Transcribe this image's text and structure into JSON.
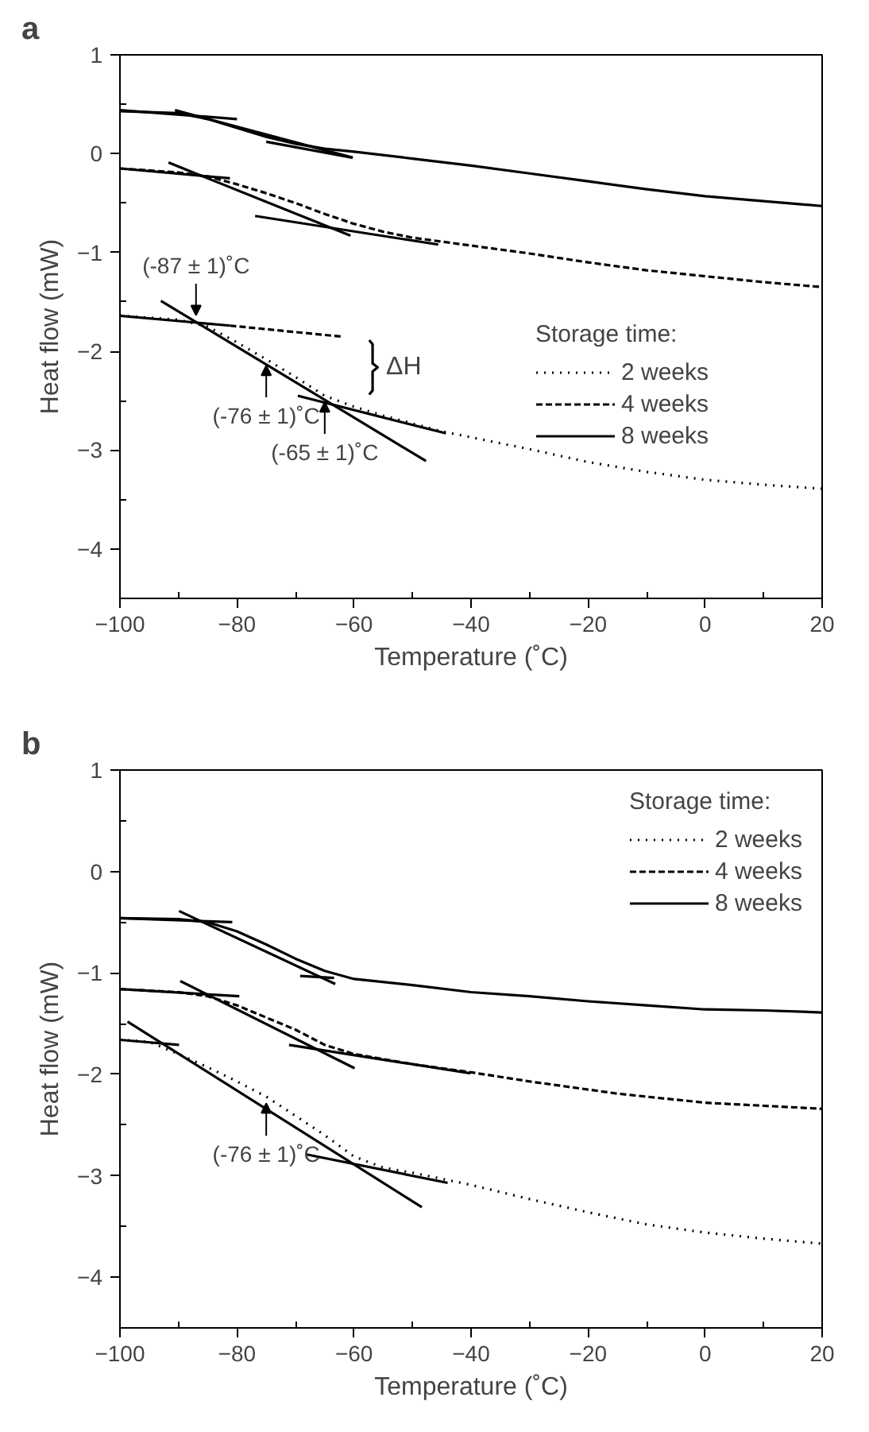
{
  "chart_data": [
    {
      "type": "line",
      "title": "a",
      "xlabel": "Temperature (˚C)",
      "ylabel": "Heat flow (mW)",
      "legend_title": "Storage time:",
      "legend": "right",
      "grid": false,
      "line_style": "solid",
      "xlim": [
        -100,
        20
      ],
      "ylim": [
        -4.5,
        1
      ],
      "xticks": [
        -100,
        {
          "value": -90,
          "label": null
        },
        -80,
        {
          "value": -70,
          "label": null
        },
        -60,
        {
          "value": -50,
          "label": null
        },
        -40,
        {
          "value": -30,
          "label": null
        },
        -20,
        {
          "value": -10,
          "label": null
        },
        0,
        {
          "value": 10,
          "label": null
        },
        20
      ],
      "yticks": [
        -4,
        {
          "value": -3.5,
          "label": null
        },
        -3,
        {
          "value": -2.5,
          "label": null
        },
        -2,
        {
          "value": -1.5,
          "label": null
        },
        -1,
        {
          "value": -0.5,
          "label": null
        },
        0,
        {
          "value": 0.5,
          "label": null
        },
        1
      ],
      "series": [
        {
          "name": "2 weeks",
          "color": "#000000",
          "line_style": "dotted",
          "x": [
            -100,
            -90,
            -85,
            -80,
            -75,
            -70,
            -65,
            -60,
            -55,
            -50,
            -45,
            -40,
            -30,
            -20,
            -10,
            0,
            10,
            20
          ],
          "values": [
            -1.64,
            -1.68,
            -1.75,
            -1.91,
            -2.08,
            -2.26,
            -2.45,
            -2.56,
            -2.65,
            -2.73,
            -2.81,
            -2.87,
            -2.99,
            -3.12,
            -3.22,
            -3.3,
            -3.35,
            -3.39
          ]
        },
        {
          "name": "4 weeks",
          "color": "#000000",
          "line_style": "dashed",
          "x": [
            -100,
            -90,
            -85,
            -80,
            -75,
            -70,
            -65,
            -60,
            -55,
            -50,
            -45,
            -40,
            -30,
            -20,
            -10,
            0,
            10,
            20
          ],
          "values": [
            -0.15,
            -0.19,
            -0.23,
            -0.31,
            -0.4,
            -0.5,
            -0.61,
            -0.71,
            -0.79,
            -0.85,
            -0.89,
            -0.93,
            -1.01,
            -1.1,
            -1.18,
            -1.24,
            -1.3,
            -1.35
          ]
        },
        {
          "name": "8 weeks",
          "color": "#000000",
          "line_style": "solid",
          "x": [
            -100,
            -90,
            -85,
            -80,
            -75,
            -70,
            -65,
            -60,
            -50,
            -40,
            -30,
            -20,
            -10,
            0,
            10,
            20
          ],
          "values": [
            0.43,
            0.41,
            0.35,
            0.26,
            0.17,
            0.1,
            0.05,
            0.02,
            -0.05,
            -0.12,
            -0.2,
            -0.28,
            -0.36,
            -0.43,
            -0.48,
            -0.53
          ]
        },
        {
          "color": "#000000",
          "x": [
            -100,
            -80
          ],
          "values": [
            0.44,
            0.35
          ]
        },
        {
          "color": "#000000",
          "x": [
            -90.6,
            -60.2
          ],
          "values": [
            0.44,
            -0.04
          ]
        },
        {
          "color": "#000000",
          "x": [
            -75,
            -60.3
          ],
          "values": [
            0.12,
            -0.04
          ]
        },
        {
          "color": "#000000",
          "x": [
            -100,
            -81.2
          ],
          "values": [
            -0.15,
            -0.25
          ]
        },
        {
          "color": "#000000",
          "x": [
            -91.7,
            -60.6
          ],
          "values": [
            -0.09,
            -0.83
          ]
        },
        {
          "color": "#000000",
          "x": [
            -76.9,
            -45.6
          ],
          "values": [
            -0.63,
            -0.92
          ]
        },
        {
          "color": "#000000",
          "x": [
            -100,
            -81.2
          ],
          "values": [
            -1.64,
            -1.74
          ]
        },
        {
          "color": "#000000",
          "line_style": "dashed",
          "x": [
            -81.2,
            -62.3
          ],
          "values": [
            -1.74,
            -1.85
          ]
        },
        {
          "color": "#000000",
          "x": [
            -93,
            -47.7
          ],
          "values": [
            -1.49,
            -3.11
          ]
        },
        {
          "color": "#000000",
          "x": [
            -69.6,
            -44.3
          ],
          "values": [
            -2.45,
            -2.83
          ]
        }
      ],
      "annotations": [
        {
          "text": "(-87 ± 1)˚C",
          "x": -87,
          "y": -1.7
        },
        {
          "text": "(-76 ± 1)˚C",
          "x": -75,
          "y": -2.08
        },
        {
          "text": "(-65 ± 1)˚C",
          "x": -65,
          "y": -2.45
        },
        "ΔH"
      ]
    },
    {
      "type": "line",
      "title": "b",
      "xlabel": "Temperature (˚C)",
      "ylabel": "Heat flow (mW)",
      "legend_title": "Storage time:",
      "legend": "top right",
      "grid": false,
      "line_style": "solid",
      "xlim": [
        -100,
        20
      ],
      "ylim": [
        -4.5,
        1
      ],
      "xticks": [
        -100,
        {
          "value": -90,
          "label": null
        },
        -80,
        {
          "value": -70,
          "label": null
        },
        -60,
        {
          "value": -50,
          "label": null
        },
        -40,
        {
          "value": -30,
          "label": null
        },
        -20,
        {
          "value": -10,
          "label": null
        },
        0,
        {
          "value": 10,
          "label": null
        },
        20
      ],
      "yticks": [
        -4,
        {
          "value": -3.5,
          "label": null
        },
        -3,
        {
          "value": -2.5,
          "label": null
        },
        -2,
        {
          "value": -1.5,
          "label": null
        },
        -1,
        {
          "value": -0.5,
          "label": null
        },
        0,
        {
          "value": 0.5,
          "label": null
        },
        1
      ],
      "series": [
        {
          "name": "2 weeks",
          "color": "#000000",
          "line_style": "dotted",
          "x": [
            -100,
            -95,
            -90,
            -85,
            -80,
            -75,
            -70,
            -65,
            -60,
            -55,
            -50,
            -45,
            -40,
            -30,
            -20,
            -10,
            0,
            10,
            20
          ],
          "values": [
            -1.66,
            -1.68,
            -1.8,
            -1.93,
            -2.07,
            -2.22,
            -2.41,
            -2.6,
            -2.81,
            -2.92,
            -2.97,
            -3.03,
            -3.09,
            -3.23,
            -3.36,
            -3.48,
            -3.56,
            -3.62,
            -3.67
          ]
        },
        {
          "name": "4 weeks",
          "color": "#000000",
          "line_style": "dashed",
          "x": [
            -100,
            -90,
            -85,
            -80,
            -75,
            -70,
            -65,
            -60,
            -55,
            -50,
            -45,
            -40,
            -30,
            -20,
            -15,
            -10,
            0,
            10,
            20
          ],
          "values": [
            -1.16,
            -1.19,
            -1.23,
            -1.32,
            -1.44,
            -1.56,
            -1.71,
            -1.8,
            -1.85,
            -1.9,
            -1.94,
            -1.98,
            -2.07,
            -2.15,
            -2.19,
            -2.22,
            -2.28,
            -2.31,
            -2.34
          ]
        },
        {
          "name": "8 weeks",
          "color": "#000000",
          "line_style": "solid",
          "x": [
            -100,
            -90,
            -85,
            -80,
            -75,
            -70,
            -65,
            -60,
            -50,
            -40,
            -30,
            -20,
            -10,
            0,
            10,
            20
          ],
          "values": [
            -0.46,
            -0.47,
            -0.5,
            -0.59,
            -0.72,
            -0.86,
            -0.98,
            -1.06,
            -1.12,
            -1.19,
            -1.23,
            -1.28,
            -1.32,
            -1.36,
            -1.37,
            -1.39
          ]
        },
        {
          "color": "#000000",
          "x": [
            -100,
            -80.8
          ],
          "values": [
            -0.46,
            -0.5
          ]
        },
        {
          "color": "#000000",
          "x": [
            -89.9,
            -63.2
          ],
          "values": [
            -0.39,
            -1.11
          ]
        },
        {
          "color": "#000000",
          "x": [
            -69.2,
            -63.4
          ],
          "values": [
            -1.03,
            -1.05
          ]
        },
        {
          "color": "#000000",
          "x": [
            -100,
            -79.6
          ],
          "values": [
            -1.16,
            -1.23
          ]
        },
        {
          "color": "#000000",
          "x": [
            -89.7,
            -59.9
          ],
          "values": [
            -1.08,
            -1.94
          ]
        },
        {
          "color": "#000000",
          "x": [
            -71.1,
            -40.1
          ],
          "values": [
            -1.71,
            -1.99
          ]
        },
        {
          "color": "#000000",
          "x": [
            -100,
            -89.9
          ],
          "values": [
            -1.66,
            -1.71
          ]
        },
        {
          "color": "#000000",
          "x": [
            -98.7,
            -48.4
          ],
          "values": [
            -1.48,
            -3.31
          ]
        },
        {
          "color": "#000000",
          "x": [
            -68.1,
            -44
          ],
          "values": [
            -2.79,
            -3.07
          ]
        }
      ],
      "annotations": [
        {
          "text": "(-76 ± 1)˚C",
          "x": -75,
          "y": -2.22
        }
      ]
    }
  ]
}
